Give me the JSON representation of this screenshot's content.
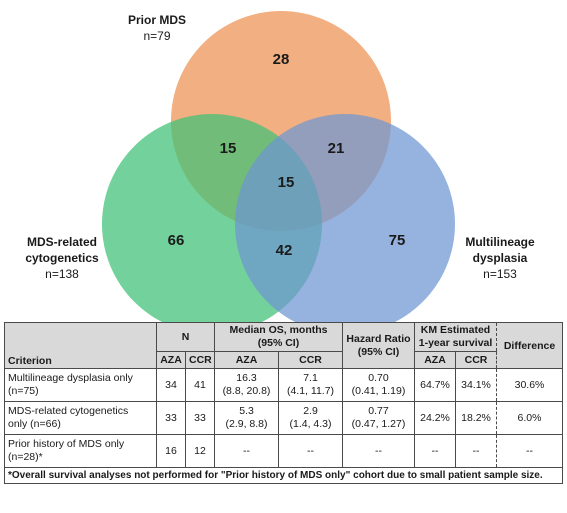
{
  "venn": {
    "sets": [
      {
        "id": "mds",
        "name": "Prior MDS",
        "n": "n=79",
        "color": "#f0a16b"
      },
      {
        "id": "cyto",
        "name_line1": "MDS-related",
        "name_line2": "cytogenetics",
        "n": "n=138",
        "color": "#3dc174"
      },
      {
        "id": "ml",
        "name_line1": "Multilineage",
        "name_line2": "dysplasia",
        "n": "n=153",
        "color": "#6e96d2"
      }
    ],
    "regions": {
      "mds_only": "28",
      "mds_cyto": "15",
      "mds_ml": "21",
      "all_three": "15",
      "cyto_only": "66",
      "cyto_ml": "42",
      "ml_only": "75"
    }
  },
  "table": {
    "headers": {
      "criterion": "Criterion",
      "n": "N",
      "median_os_line1": "Median OS, months",
      "median_os_line2": "(95% CI)",
      "hr_line1": "Hazard Ratio",
      "hr_line2": "(95% CI)",
      "km_line1": "KM Estimated",
      "km_line2": "1-year survival",
      "difference": "Difference",
      "aza": "AZA",
      "ccr": "CCR"
    },
    "rows": [
      {
        "criterion_line1": "Multilineage dysplasia only",
        "criterion_line2": "(n=75)",
        "n_aza": "34",
        "n_ccr": "41",
        "os_aza_line1": "16.3",
        "os_aza_line2": "(8.8, 20.8)",
        "os_ccr_line1": "7.1",
        "os_ccr_line2": "(4.1, 11.7)",
        "hr_line1": "0.70",
        "hr_line2": "(0.41, 1.19)",
        "km_aza": "64.7%",
        "km_ccr": "34.1%",
        "difference": "30.6%"
      },
      {
        "criterion_line1": "MDS-related cytogenetics",
        "criterion_line2": "only (n=66)",
        "n_aza": "33",
        "n_ccr": "33",
        "os_aza_line1": "5.3",
        "os_aza_line2": "(2.9, 8.8)",
        "os_ccr_line1": "2.9",
        "os_ccr_line2": "(1.4, 4.3)",
        "hr_line1": "0.77",
        "hr_line2": "(0.47, 1.27)",
        "km_aza": "24.2%",
        "km_ccr": "18.2%",
        "difference": "6.0%"
      },
      {
        "criterion_line1": "Prior history of MDS only",
        "criterion_line2": "(n=28)*",
        "n_aza": "16",
        "n_ccr": "12",
        "os_aza_line1": "--",
        "os_aza_line2": "",
        "os_ccr_line1": "--",
        "os_ccr_line2": "",
        "hr_line1": "--",
        "hr_line2": "",
        "km_aza": "--",
        "km_ccr": "--",
        "difference": "--"
      }
    ],
    "footnote": "*Overall survival analyses not performed for \"Prior history of MDS only\" cohort due to small patient sample size."
  }
}
